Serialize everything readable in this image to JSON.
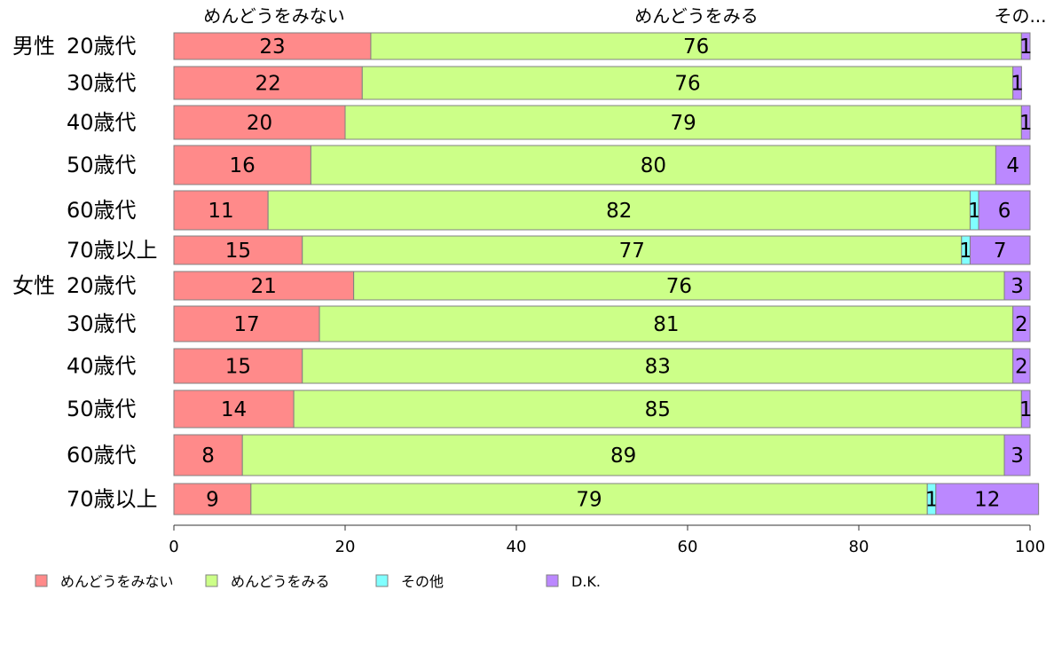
{
  "chart_data": {
    "type": "bar",
    "orientation": "horizontal",
    "stacked": true,
    "xlim": [
      0,
      100
    ],
    "x_ticks": [
      "0",
      "20",
      "40",
      "60",
      "80",
      "100"
    ],
    "top_labels": [
      "めんどうをみない",
      "めんどうをみる",
      "その..."
    ],
    "group_labels": [
      "男性",
      "女性"
    ],
    "categories": [
      "20歳代",
      "30歳代",
      "40歳代",
      "50歳代",
      "60歳代",
      "70歳以上",
      "20歳代",
      "30歳代",
      "40歳代",
      "50歳代",
      "60歳代",
      "70歳以上"
    ],
    "series": [
      {
        "name": "めんどうをみない",
        "color": "#ff8a8a",
        "values": [
          23,
          22,
          20,
          16,
          11,
          15,
          21,
          17,
          15,
          14,
          8,
          9
        ]
      },
      {
        "name": "めんどうをみる",
        "color": "#ccff88",
        "values": [
          76,
          76,
          79,
          80,
          82,
          77,
          76,
          81,
          83,
          85,
          89,
          79
        ]
      },
      {
        "name": "その他",
        "color": "#80ffff",
        "values": [
          0,
          0,
          0,
          0,
          1,
          1,
          0,
          0,
          0,
          0,
          0,
          1
        ]
      },
      {
        "name": "D.K.",
        "color": "#bb88ff",
        "values": [
          1,
          1,
          1,
          4,
          6,
          7,
          3,
          2,
          2,
          1,
          3,
          12
        ]
      }
    ]
  }
}
